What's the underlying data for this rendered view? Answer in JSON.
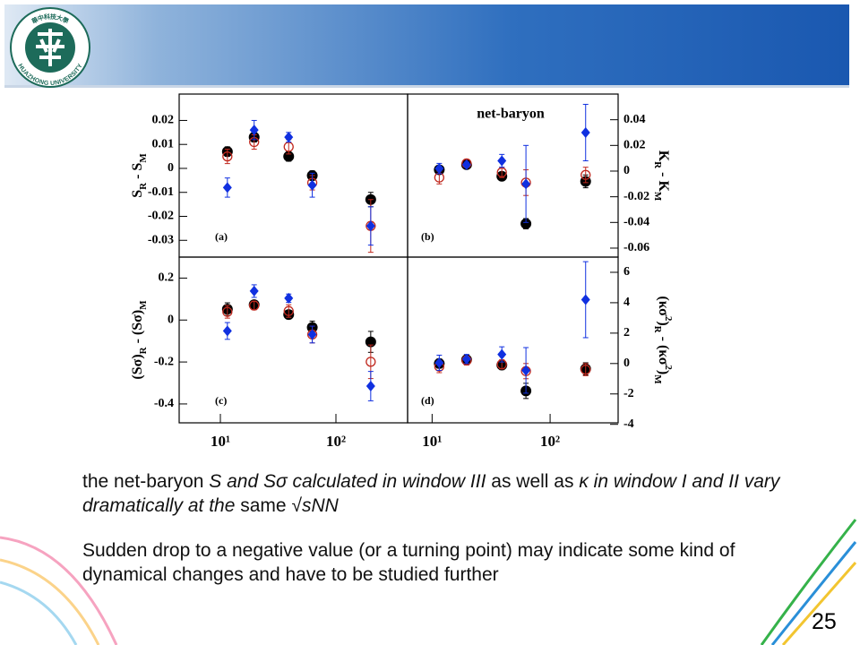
{
  "logo": {
    "ring_top": "華中科技大學",
    "ring_bottom": "HUAZHONG UNIVERSITY"
  },
  "chart_data": [
    {
      "type": "scatter",
      "panel_label": "(a)",
      "yaxis_side": "left",
      "ylabel": [
        {
          "text": "S"
        },
        {
          "text": "R",
          "shift": "sub"
        },
        {
          "text": " - S"
        },
        {
          "text": "M",
          "shift": "sub"
        }
      ],
      "x": [
        11.5,
        19.6,
        39,
        62.4,
        200
      ],
      "xscale": "log",
      "xlim": [
        4.4,
        417
      ],
      "ylim": [
        -0.037,
        0.031
      ],
      "yticks": [
        -0.03,
        -0.02,
        -0.01,
        0,
        0.01,
        0.02
      ],
      "series": [
        {
          "color": "#000000",
          "marker": "circle",
          "values": [
            0.007,
            0.013,
            0.005,
            -0.003,
            -0.013
          ],
          "errors": [
            0.002,
            0.002,
            0.002,
            0.002,
            0.003
          ]
        },
        {
          "color": "#c0281e",
          "marker": "open-circle",
          "values": [
            0.005,
            0.011,
            0.009,
            -0.006,
            -0.024
          ],
          "errors": [
            0.003,
            0.003,
            0.003,
            0.003,
            0.011
          ]
        },
        {
          "color": "#1030e0",
          "marker": "diamond",
          "values": [
            -0.008,
            0.016,
            0.013,
            -0.007,
            -0.024
          ],
          "errors": [
            0.004,
            0.004,
            0.002,
            0.005,
            0.008
          ]
        }
      ]
    },
    {
      "type": "scatter",
      "panel_label": "(b)",
      "annotation": "net-baryon",
      "yaxis_side": "right",
      "ylabel": [
        {
          "text": "K"
        },
        {
          "text": "R",
          "shift": "sub"
        },
        {
          "text": " - K"
        },
        {
          "text": "M",
          "shift": "sub"
        }
      ],
      "x": [
        11.5,
        19.6,
        39,
        62.4,
        200
      ],
      "xscale": "log",
      "xlim": [
        6.2,
        377
      ],
      "ylim": [
        -0.067,
        0.06
      ],
      "yticks": [
        -0.06,
        -0.04,
        -0.02,
        0,
        0.02,
        0.04
      ],
      "series": [
        {
          "color": "#000000",
          "marker": "circle",
          "values": [
            0.001,
            0.005,
            -0.004,
            -0.041,
            -0.008
          ],
          "errors": [
            0.003,
            0.002,
            0.003,
            0.004,
            0.005
          ]
        },
        {
          "color": "#c0281e",
          "marker": "open-circle",
          "values": [
            -0.005,
            0.006,
            -0.001,
            -0.009,
            -0.003
          ],
          "errors": [
            0.005,
            0.003,
            0.004,
            0.01,
            0.006
          ]
        },
        {
          "color": "#1030e0",
          "marker": "diamond",
          "values": [
            0.002,
            0.005,
            0.008,
            -0.01,
            0.03
          ],
          "errors": [
            0.004,
            0.002,
            0.005,
            0.03,
            0.022
          ]
        }
      ]
    },
    {
      "type": "scatter",
      "panel_label": "(c)",
      "yaxis_side": "left",
      "ylabel": [
        {
          "text": "(Sσ)"
        },
        {
          "text": "R",
          "shift": "sub"
        },
        {
          "text": " - (Sσ)"
        },
        {
          "text": "M",
          "shift": "sub"
        }
      ],
      "x": [
        11.5,
        19.6,
        39,
        62.4,
        200
      ],
      "xscale": "log",
      "xlim": [
        4.4,
        417
      ],
      "xticks": [
        {
          "value": 10,
          "label": "10¹"
        },
        {
          "value": 100,
          "label": "10²"
        }
      ],
      "ylim": [
        -0.49,
        0.3
      ],
      "yticks": [
        -0.4,
        -0.2,
        0,
        0.2
      ],
      "series": [
        {
          "color": "#000000",
          "marker": "circle",
          "values": [
            0.052,
            0.073,
            0.026,
            -0.035,
            -0.104
          ],
          "errors": [
            0.03,
            0.02,
            0.02,
            0.03,
            0.05
          ]
        },
        {
          "color": "#c0281e",
          "marker": "open-circle",
          "values": [
            0.039,
            0.069,
            0.043,
            -0.069,
            -0.199
          ],
          "errors": [
            0.03,
            0.02,
            0.03,
            0.04,
            0.08
          ]
        },
        {
          "color": "#1030e0",
          "marker": "diamond",
          "values": [
            -0.052,
            0.138,
            0.104,
            -0.069,
            -0.315
          ],
          "errors": [
            0.04,
            0.03,
            0.02,
            0.04,
            0.07
          ]
        }
      ]
    },
    {
      "type": "scatter",
      "panel_label": "(d)",
      "yaxis_side": "right",
      "ylabel": [
        {
          "text": "(κσ"
        },
        {
          "text": "2",
          "shift": "super"
        },
        {
          "text": ")"
        },
        {
          "text": "R",
          "shift": "sub"
        },
        {
          "text": " - (κσ"
        },
        {
          "text": "2",
          "shift": "super"
        },
        {
          "text": ")"
        },
        {
          "text": "M",
          "shift": "sub"
        }
      ],
      "x": [
        11.5,
        19.6,
        39,
        62.4,
        200
      ],
      "xscale": "log",
      "xlim": [
        6.2,
        377
      ],
      "xticks": [
        {
          "value": 10,
          "label": "10¹"
        },
        {
          "value": 100,
          "label": "10²"
        }
      ],
      "ylim": [
        -3.9,
        7
      ],
      "yticks": [
        -4,
        -2,
        0,
        2,
        4,
        6
      ],
      "series": [
        {
          "color": "#000000",
          "marker": "circle",
          "values": [
            0,
            0.25,
            -0.1,
            -1.8,
            -0.35
          ],
          "errors": [
            0.3,
            0.3,
            0.3,
            0.5,
            0.4
          ]
        },
        {
          "color": "#c0281e",
          "marker": "open-circle",
          "values": [
            -0.2,
            0.2,
            -0.05,
            -0.5,
            -0.4
          ],
          "errors": [
            0.4,
            0.3,
            0.3,
            0.5,
            0.4
          ]
        },
        {
          "color": "#1030e0",
          "marker": "diamond",
          "values": [
            0.05,
            0.3,
            0.6,
            -0.45,
            4.2
          ],
          "errors": [
            0.5,
            0.3,
            0.5,
            1.5,
            2.5
          ]
        }
      ]
    }
  ],
  "bullets": [
    [
      {
        "text": "the net-baryon "
      },
      {
        "text": "S and Sσ calculated in window III",
        "italic": true
      },
      {
        "text": " as well as "
      },
      {
        "text": "κ in window I and II vary dramatically at the",
        "italic": true
      },
      {
        "text": " same √"
      },
      {
        "text": "sNN",
        "italic": true
      }
    ],
    [
      {
        "text": "Sudden drop to a negative value (or a turning point) may indicate some kind of dynamical changes and have to be studied further"
      }
    ]
  ],
  "page_number": "25"
}
